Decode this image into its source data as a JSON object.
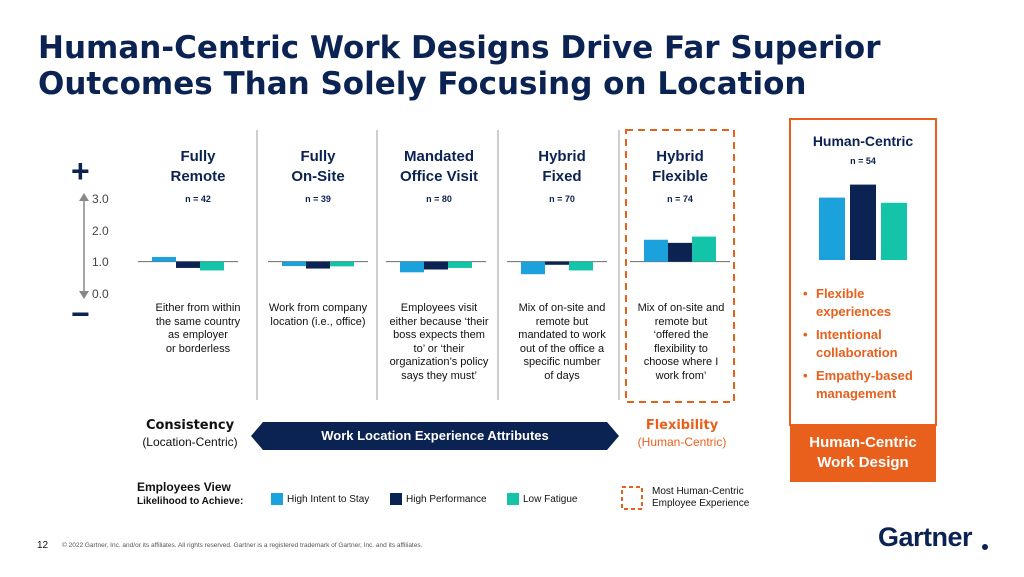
{
  "title_lines": [
    "Human-Centric Work Designs Drive Far Superior",
    "Outcomes Than Solely Focusing on Location"
  ],
  "axis": {
    "ticks": [
      "3.0",
      "2.0",
      "1.0",
      "0.0"
    ],
    "plus": "+",
    "minus": "−"
  },
  "chart_data": {
    "type": "bar",
    "categories": [
      "Fully Remote",
      "Fully On-Site",
      "Mandated Office Visit",
      "Hybrid Fixed",
      "Hybrid Flexible"
    ],
    "sample_sizes": [
      "n = 42",
      "n = 39",
      "n = 80",
      "n = 70",
      "n = 74"
    ],
    "baseline": 1.0,
    "ylim": [
      0,
      3
    ],
    "series": [
      {
        "name": "High Intent to Stay",
        "color": "#1ba2dc",
        "values": [
          1.15,
          0.86,
          0.66,
          0.6,
          1.7
        ]
      },
      {
        "name": "High Performance",
        "color": "#0b2352",
        "values": [
          0.8,
          0.78,
          0.75,
          0.9,
          1.6
        ]
      },
      {
        "name": "Low Fatigue",
        "color": "#14c4a8",
        "values": [
          0.72,
          0.85,
          0.8,
          0.72,
          1.8
        ]
      }
    ],
    "human_centric": {
      "title": "Human-Centric",
      "n": "n = 54",
      "values": [
        2.4,
        2.9,
        2.2
      ]
    }
  },
  "columns": [
    {
      "title": [
        "Fully",
        "Remote"
      ],
      "desc": [
        "Either from within",
        "the same country",
        "as employer",
        "or borderless"
      ]
    },
    {
      "title": [
        "Fully",
        "On-Site"
      ],
      "desc": [
        "Work from company",
        "location (i.e., office)"
      ]
    },
    {
      "title": [
        "Mandated",
        "Office Visit"
      ],
      "desc": [
        "Employees visit",
        "either because ‘their",
        "boss expects them",
        "to’ or ‘their",
        "organization’s  policy",
        "says they must’"
      ]
    },
    {
      "title": [
        "Hybrid",
        "Fixed"
      ],
      "desc": [
        "Mix of on-site and",
        "remote but",
        "mandated to work",
        "out of the office a",
        "specific number",
        "of days"
      ]
    },
    {
      "title": [
        "Hybrid",
        "Flexible"
      ],
      "desc": [
        "Mix of on-site and",
        "remote but",
        "‘offered the",
        "flexibility  to",
        "choose where I",
        "work from’"
      ]
    }
  ],
  "human_centric_panel": {
    "bullets": [
      "Flexible experiences",
      "Intentional collaboration",
      "Empathy-based management"
    ],
    "footer": [
      "Human-Centric",
      "Work Design"
    ]
  },
  "spectrum": {
    "left_title": "Consistency",
    "left_sub": "(Location-Centric)",
    "arrow_label": "Work Location Experience Attributes",
    "right_title": "Flexibility",
    "right_sub": "(Human-Centric)"
  },
  "legend": {
    "heading": "Employees View",
    "subheading": "Likelihood to Achieve:",
    "dashed_label": [
      "Most Human-Centric",
      "Employee Experience"
    ]
  },
  "footer": {
    "page": "12",
    "copyright": "© 2022 Gartner, Inc. and/or its affiliates. All rights reserved. Gartner is a registered trademark of Gartner, Inc. and its affiliates.",
    "logo": "Gartner"
  },
  "colors": {
    "navy": "#0b2352",
    "orange": "#e8601c",
    "blue": "#1ba2dc",
    "teal": "#14c4a8",
    "divider": "#cfcfcf"
  }
}
